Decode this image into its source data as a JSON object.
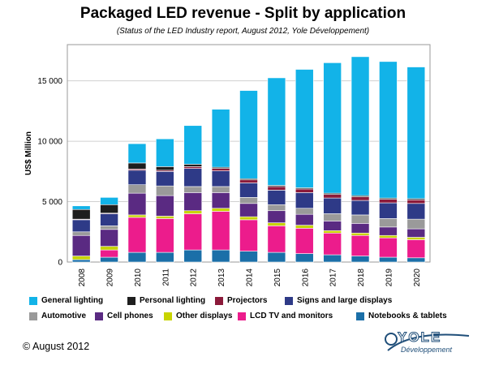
{
  "title": "Packaged LED revenue - Split by application",
  "subtitle": "(Status of the LED Industry report, August 2012, Yole Développement)",
  "copyright": "© August 2012",
  "logo": {
    "text": "YOLE",
    "tagline": "Développement"
  },
  "chart_data": {
    "type": "bar",
    "stacked": true,
    "categories": [
      "2008",
      "2009",
      "2010",
      "2011",
      "2012",
      "2013",
      "2014",
      "2015",
      "2016",
      "2017",
      "2018",
      "2019",
      "2020"
    ],
    "ylabel": "US$ Million",
    "ylim": [
      0,
      18000
    ],
    "yticks": [
      0,
      5000,
      10000,
      15000
    ],
    "ytick_labels": [
      "0",
      "5 000",
      "10 000",
      "15 000"
    ],
    "grid": true,
    "legend_position": "bottom",
    "series": [
      {
        "name": "Notebooks & tablets",
        "color": "#1b6fa8",
        "values": [
          200,
          400,
          800,
          800,
          1000,
          1000,
          900,
          800,
          700,
          600,
          500,
          400,
          350
        ]
      },
      {
        "name": "LCD TV and monitors",
        "color": "#ec1c8c",
        "values": [
          0,
          600,
          2900,
          2800,
          3000,
          3200,
          2600,
          2200,
          2100,
          1800,
          1700,
          1600,
          1500
        ]
      },
      {
        "name": "Other displays",
        "color": "#c8d400",
        "values": [
          300,
          300,
          200,
          200,
          250,
          250,
          250,
          250,
          250,
          200,
          200,
          200,
          200
        ]
      },
      {
        "name": "Cell phones",
        "color": "#5a2a82",
        "values": [
          1700,
          1400,
          1800,
          1700,
          1500,
          1300,
          1100,
          1000,
          900,
          800,
          800,
          700,
          700
        ]
      },
      {
        "name": "Automotive",
        "color": "#9a9a9a",
        "values": [
          300,
          300,
          700,
          800,
          500,
          500,
          500,
          500,
          500,
          600,
          700,
          700,
          800
        ]
      },
      {
        "name": "Signs and large displays",
        "color": "#2e3a87",
        "values": [
          1000,
          1000,
          1200,
          1200,
          1500,
          1300,
          1200,
          1200,
          1300,
          1300,
          1200,
          1300,
          1300
        ]
      },
      {
        "name": "Projectors",
        "color": "#8b1a3a",
        "values": [
          50,
          50,
          100,
          100,
          150,
          200,
          250,
          300,
          300,
          300,
          300,
          300,
          300
        ]
      },
      {
        "name": "Personal lighting",
        "color": "#1e1e1e",
        "values": [
          800,
          700,
          500,
          300,
          200,
          100,
          100,
          100,
          100,
          100,
          100,
          100,
          100
        ]
      },
      {
        "name": "General lighting",
        "color": "#12b3e8",
        "values": [
          300,
          600,
          1600,
          2300,
          3200,
          4800,
          7300,
          8900,
          9800,
          10800,
          11500,
          11300,
          10900
        ]
      }
    ],
    "legend_rows": [
      [
        "General lighting",
        "Personal lighting",
        "Projectors",
        "Signs and large displays"
      ],
      [
        "Automotive",
        "Cell phones",
        "Other displays",
        "LCD TV and monitors",
        "Notebooks & tablets"
      ]
    ]
  }
}
